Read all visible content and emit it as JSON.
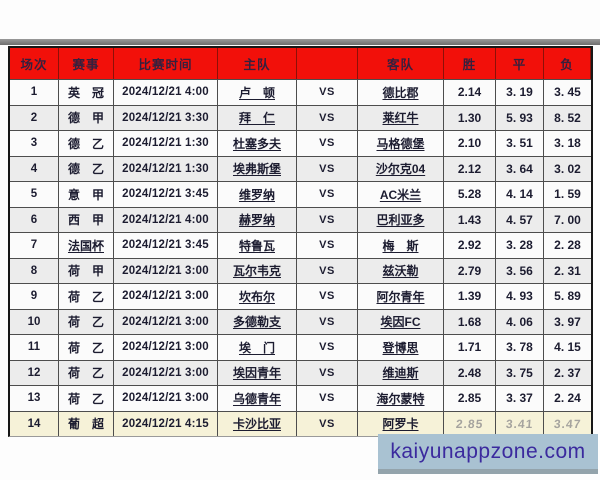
{
  "colors": {
    "header_bg": "#f2100a",
    "header_text": "#35203e",
    "highlight_bg": "#f6f2d8",
    "watermark_bg": "#a9c2d2",
    "watermark_text": "#3b2a9e"
  },
  "watermark": {
    "text": "kaiyunappzone.com"
  },
  "table": {
    "headers": {
      "no": "场次",
      "league": "赛事",
      "time": "比赛时间",
      "home": "主队",
      "vs": "",
      "away": "客队",
      "win": "胜",
      "draw": "平",
      "lose": "负"
    },
    "rows": [
      {
        "no": "1",
        "league": "英　冠",
        "time": "2024/12/21 4:00",
        "home": "卢　顿",
        "vs": "VS",
        "away": "德比郡",
        "win": "2.14",
        "draw": "3. 19",
        "lose": "3. 45"
      },
      {
        "no": "2",
        "league": "德　甲",
        "time": "2024/12/21 3:30",
        "home": "拜　仁",
        "vs": "VS",
        "away": "莱红牛",
        "win": "1.30",
        "draw": "5. 93",
        "lose": "8. 52"
      },
      {
        "no": "3",
        "league": "德　乙",
        "time": "2024/12/21 1:30",
        "home": "杜塞多夫",
        "vs": "VS",
        "away": "马格德堡",
        "win": "2.10",
        "draw": "3. 51",
        "lose": "3. 18"
      },
      {
        "no": "4",
        "league": "德　乙",
        "time": "2024/12/21 1:30",
        "home": "埃弗斯堡",
        "vs": "VS",
        "away": "沙尔克04",
        "win": "2.12",
        "draw": "3. 64",
        "lose": "3. 02"
      },
      {
        "no": "5",
        "league": "意　甲",
        "time": "2024/12/21 3:45",
        "home": "维罗纳",
        "vs": "VS",
        "away": "AC米兰",
        "win": "5.28",
        "draw": "4. 14",
        "lose": "1. 59"
      },
      {
        "no": "6",
        "league": "西　甲",
        "time": "2024/12/21 4:00",
        "home": "赫罗纳",
        "vs": "VS",
        "away": "巴利亚多",
        "win": "1.43",
        "draw": "4. 57",
        "lose": "7. 00"
      },
      {
        "no": "7",
        "league": "法国杯",
        "league_underlined": true,
        "time": "2024/12/21 3:45",
        "home": "特鲁瓦",
        "vs": "VS",
        "away": "梅　斯",
        "win": "2.92",
        "draw": "3. 28",
        "lose": "2. 28"
      },
      {
        "no": "8",
        "league": "荷　甲",
        "time": "2024/12/21 3:00",
        "home": "瓦尔韦克",
        "vs": "VS",
        "away": "兹沃勒",
        "win": "2.79",
        "draw": "3. 56",
        "lose": "2. 31"
      },
      {
        "no": "9",
        "league": "荷　乙",
        "time": "2024/12/21 3:00",
        "home": "坎布尔",
        "vs": "VS",
        "away": "阿尔青年",
        "win": "1.39",
        "draw": "4. 93",
        "lose": "5. 89"
      },
      {
        "no": "10",
        "league": "荷　乙",
        "time": "2024/12/21 3:00",
        "home": "多德勒支",
        "vs": "VS",
        "away": "埃因FC",
        "win": "1.68",
        "draw": "4. 06",
        "lose": "3. 97"
      },
      {
        "no": "11",
        "league": "荷　乙",
        "time": "2024/12/21 3:00",
        "home": "埃　门",
        "vs": "VS",
        "away": "登博思",
        "win": "1.71",
        "draw": "3. 78",
        "lose": "4. 15"
      },
      {
        "no": "12",
        "league": "荷　乙",
        "time": "2024/12/21 3:00",
        "home": "埃因青年",
        "vs": "VS",
        "away": "维迪斯",
        "win": "2.48",
        "draw": "3. 75",
        "lose": "2. 37"
      },
      {
        "no": "13",
        "league": "荷　乙",
        "time": "2024/12/21 3:00",
        "home": "乌德青年",
        "vs": "VS",
        "away": "海尔蒙特",
        "win": "2.85",
        "draw": "3. 37",
        "lose": "2. 24"
      },
      {
        "no": "14",
        "league": "葡　超",
        "time": "2024/12/21 4:15",
        "home": "卡沙比亚",
        "vs": "VS",
        "away": "阿罗卡",
        "win": "2.85",
        "draw": "3.41",
        "lose": "3.47",
        "highlight": true,
        "faded": true
      }
    ]
  }
}
